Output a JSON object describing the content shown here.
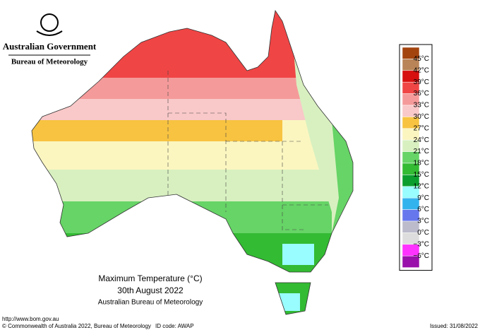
{
  "header": {
    "agency": "Australian Government",
    "bureau": "Bureau of Meteorology"
  },
  "map": {
    "title": "Maximum Temperature (°C)",
    "date": "30th August 2022",
    "source": "Australian Bureau of Meteorology"
  },
  "legend": {
    "labels": [
      "45°C",
      "42°C",
      "39°C",
      "36°C",
      "33°C",
      "30°C",
      "27°C",
      "24°C",
      "21°C",
      "18°C",
      "15°C",
      "12°C",
      "9°C",
      "6°C",
      "3°C",
      "0°C",
      "−3°C",
      "−6°C"
    ],
    "colors": [
      "#a3440f",
      "#b98458",
      "#d70f0f",
      "#f04545",
      "#f59a9a",
      "#f9c8c8",
      "#f7c341",
      "#fbf6c0",
      "#d8f0c0",
      "#66d466",
      "#33bb33",
      "#0b9e2e",
      "#99fcff",
      "#33b3ee",
      "#6677ee",
      "#bbbbcc",
      "#dddddd",
      "#ff33ff",
      "#9911aa"
    ]
  },
  "footer": {
    "url": "http://www.bom.gov.au",
    "copyright": "© Commonwealth of Australia 2022, Bureau of Meteorology",
    "id_code": "ID code: AWAP",
    "issued": "Issued: 31/08/2022"
  }
}
